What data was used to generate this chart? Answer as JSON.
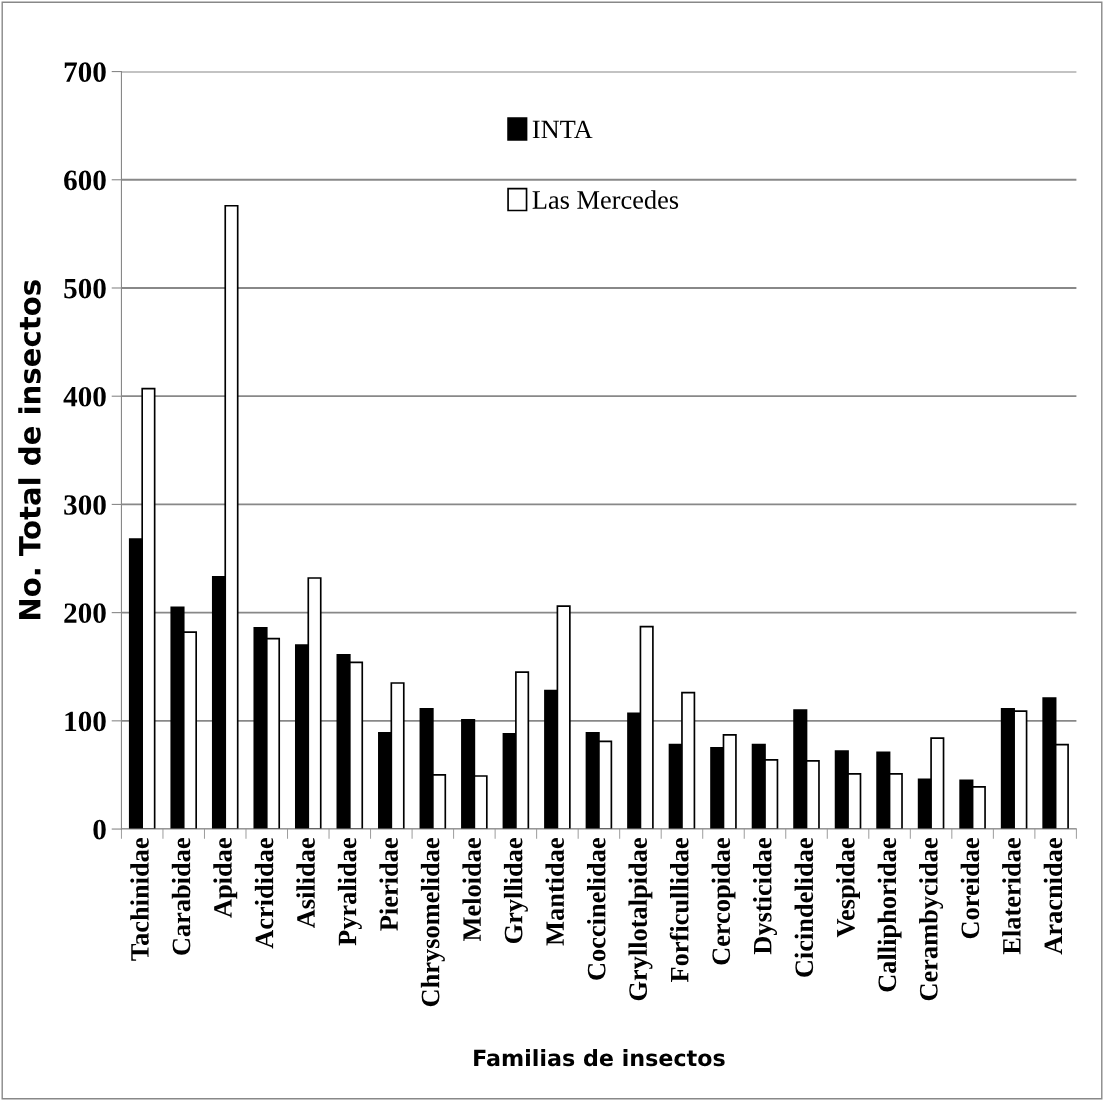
{
  "chart_data": {
    "type": "bar",
    "xlabel": "Familias de insectos",
    "ylabel": "No. Total de insectos",
    "categories": [
      "Tachinidae",
      "Carabidae",
      "Apidae",
      "Acrididae",
      "Asilidae",
      "Pyralidae",
      "Pieridae",
      "Chrysomelidae",
      "Meloidae",
      "Gryllidae",
      "Mantidae",
      "Coccinelidae",
      "Gryllotalpidae",
      "Forficullidae",
      "Cercopidae",
      "Dysticidae",
      "Cicindelidae",
      "Vespidae",
      "Calliphoridae",
      "Cerambycidae",
      "Coreidae",
      "Elateridae",
      "Aracnidae"
    ],
    "series": [
      {
        "name": "INTA",
        "color": "#000000",
        "values": [
          268,
          205,
          233,
          186,
          170,
          161,
          89,
          111,
          101,
          88,
          128,
          89,
          107,
          78,
          75,
          78,
          110,
          72,
          71,
          46,
          45,
          111,
          121
        ]
      },
      {
        "name": "Las Mercedes",
        "color": "#ffffff",
        "values": [
          407,
          182,
          576,
          176,
          232,
          154,
          135,
          50,
          49,
          145,
          206,
          81,
          187,
          126,
          87,
          64,
          63,
          51,
          51,
          84,
          39,
          109,
          78
        ]
      }
    ],
    "ylim": [
      0,
      700
    ],
    "yticks": [
      0,
      100,
      200,
      300,
      400,
      500,
      600,
      700
    ],
    "grid": "y",
    "legend": "top"
  }
}
